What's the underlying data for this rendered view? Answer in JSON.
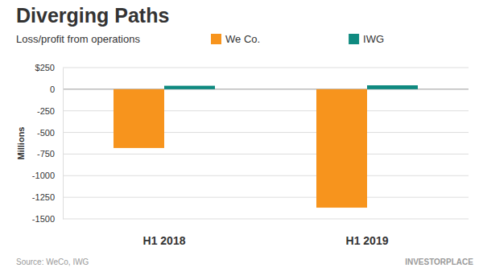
{
  "chart_data": {
    "type": "bar",
    "title": "Diverging Paths",
    "subtitle": "Loss/profit from operations",
    "ylabel": "Millions",
    "categories": [
      "H1 2018",
      "H1 2019"
    ],
    "series": [
      {
        "name": "We Co.",
        "color": "#f7941d",
        "values": [
          -680,
          -1370
        ]
      },
      {
        "name": "IWG",
        "color": "#0f8a80",
        "values": [
          40,
          45
        ]
      }
    ],
    "ylim": [
      -1500,
      250
    ],
    "yticks": [
      {
        "value": 250,
        "label": "$250"
      },
      0,
      -250,
      -500,
      -750,
      -1000,
      -1250,
      -1500
    ],
    "grid": true,
    "legend": "top",
    "source": "Source: WeCo, IWG",
    "credit": "INVESTORPLACE"
  }
}
